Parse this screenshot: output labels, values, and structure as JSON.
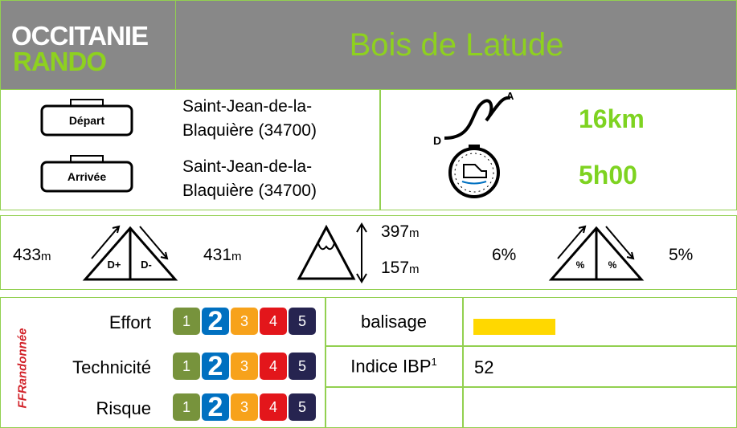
{
  "header": {
    "logo": {
      "line1": "OCCITANIE",
      "line2": "RANDO"
    },
    "title": "Bois de Latude"
  },
  "route": {
    "depart": {
      "label": "Départ",
      "place": "Saint-Jean-de-la-Blaquière (34700)"
    },
    "arrivee": {
      "label": "Arrivée",
      "place": "Saint-Jean-de-la-Blaquière (34700)"
    },
    "profile_icon": {
      "start": "D",
      "end": "A"
    },
    "distance": "16km",
    "duration": "5h00"
  },
  "elevation": {
    "gain": {
      "value": "433",
      "unit": "m"
    },
    "loss": {
      "value": "431",
      "unit": "m"
    },
    "gain_icon": "D+",
    "loss_icon": "D-",
    "max": {
      "value": "397",
      "unit": "m"
    },
    "min": {
      "value": "157",
      "unit": "m"
    },
    "slope_up": "6%",
    "slope_down": "5%",
    "slope_icon_up": "%",
    "slope_icon_down": "%"
  },
  "difficulty": {
    "scale": [
      "1",
      "2",
      "3",
      "4",
      "5"
    ],
    "colors": [
      "#77933c",
      "#0070c0",
      "#f7a21b",
      "#e3161b",
      "#262450"
    ],
    "rows": [
      {
        "label": "Effort",
        "level": 2
      },
      {
        "label": "Technicité",
        "level": 2
      },
      {
        "label": "Risque",
        "level": 2
      }
    ]
  },
  "info": {
    "balisage": {
      "label": "balisage",
      "color": "#ffd800"
    },
    "ibp": {
      "label": "Indice IBP",
      "note": "1",
      "value": "52"
    }
  },
  "federation": "FFRandonnée"
}
